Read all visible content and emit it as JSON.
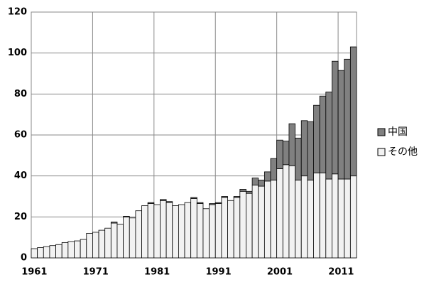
{
  "chart_data": {
    "type": "stacked-bar",
    "x": [
      1961,
      1962,
      1963,
      1964,
      1965,
      1966,
      1967,
      1968,
      1969,
      1970,
      1971,
      1972,
      1973,
      1974,
      1975,
      1976,
      1977,
      1978,
      1979,
      1980,
      1981,
      1982,
      1983,
      1984,
      1985,
      1986,
      1987,
      1988,
      1989,
      1990,
      1991,
      1992,
      1993,
      1994,
      1995,
      1996,
      1997,
      1998,
      1999,
      2000,
      2001,
      2002,
      2003,
      2004,
      2005,
      2006,
      2007,
      2008,
      2009,
      2010,
      2011,
      2012,
      2013
    ],
    "series": [
      {
        "name": "その他",
        "color": "#f2f2f2",
        "values": [
          4.5,
          5,
          5.5,
          6,
          6.5,
          7.5,
          8,
          8.3,
          9,
          12,
          12.5,
          13.5,
          14.5,
          17,
          16.5,
          20,
          19.5,
          23,
          25.5,
          26.5,
          26,
          28,
          27,
          25.5,
          26,
          27,
          29,
          26.5,
          24,
          26,
          26.5,
          29.5,
          28,
          29.5,
          32.5,
          31.5,
          35.5,
          35,
          37.5,
          38,
          43.5,
          45.5,
          45,
          38,
          40,
          38,
          41.5,
          41.5,
          38.5,
          41,
          38.5,
          38.5,
          40
        ]
      },
      {
        "name": "中国",
        "color": "#808080",
        "values": [
          0,
          0,
          0,
          0,
          0,
          0,
          0,
          0,
          0,
          0,
          0,
          0,
          0,
          0.5,
          0,
          0.3,
          0,
          0,
          0,
          0.5,
          0,
          0.5,
          0.5,
          0,
          0,
          0,
          0.5,
          0.5,
          0,
          0.5,
          0.5,
          0.5,
          0,
          0.5,
          1,
          1,
          3.5,
          3,
          4.5,
          10.5,
          14,
          11.5,
          20.5,
          20.5,
          27,
          28.5,
          33,
          37.5,
          42.5,
          55,
          53,
          58.5,
          63
        ]
      }
    ],
    "xlim": [
      1960.5,
      2013.5
    ],
    "xticks": [
      1961,
      1971,
      1981,
      1991,
      2001,
      2011
    ],
    "ylim": [
      0,
      120
    ],
    "yticks": [
      0,
      20,
      40,
      60,
      80,
      100,
      120
    ],
    "grid": true,
    "legend": "right"
  }
}
